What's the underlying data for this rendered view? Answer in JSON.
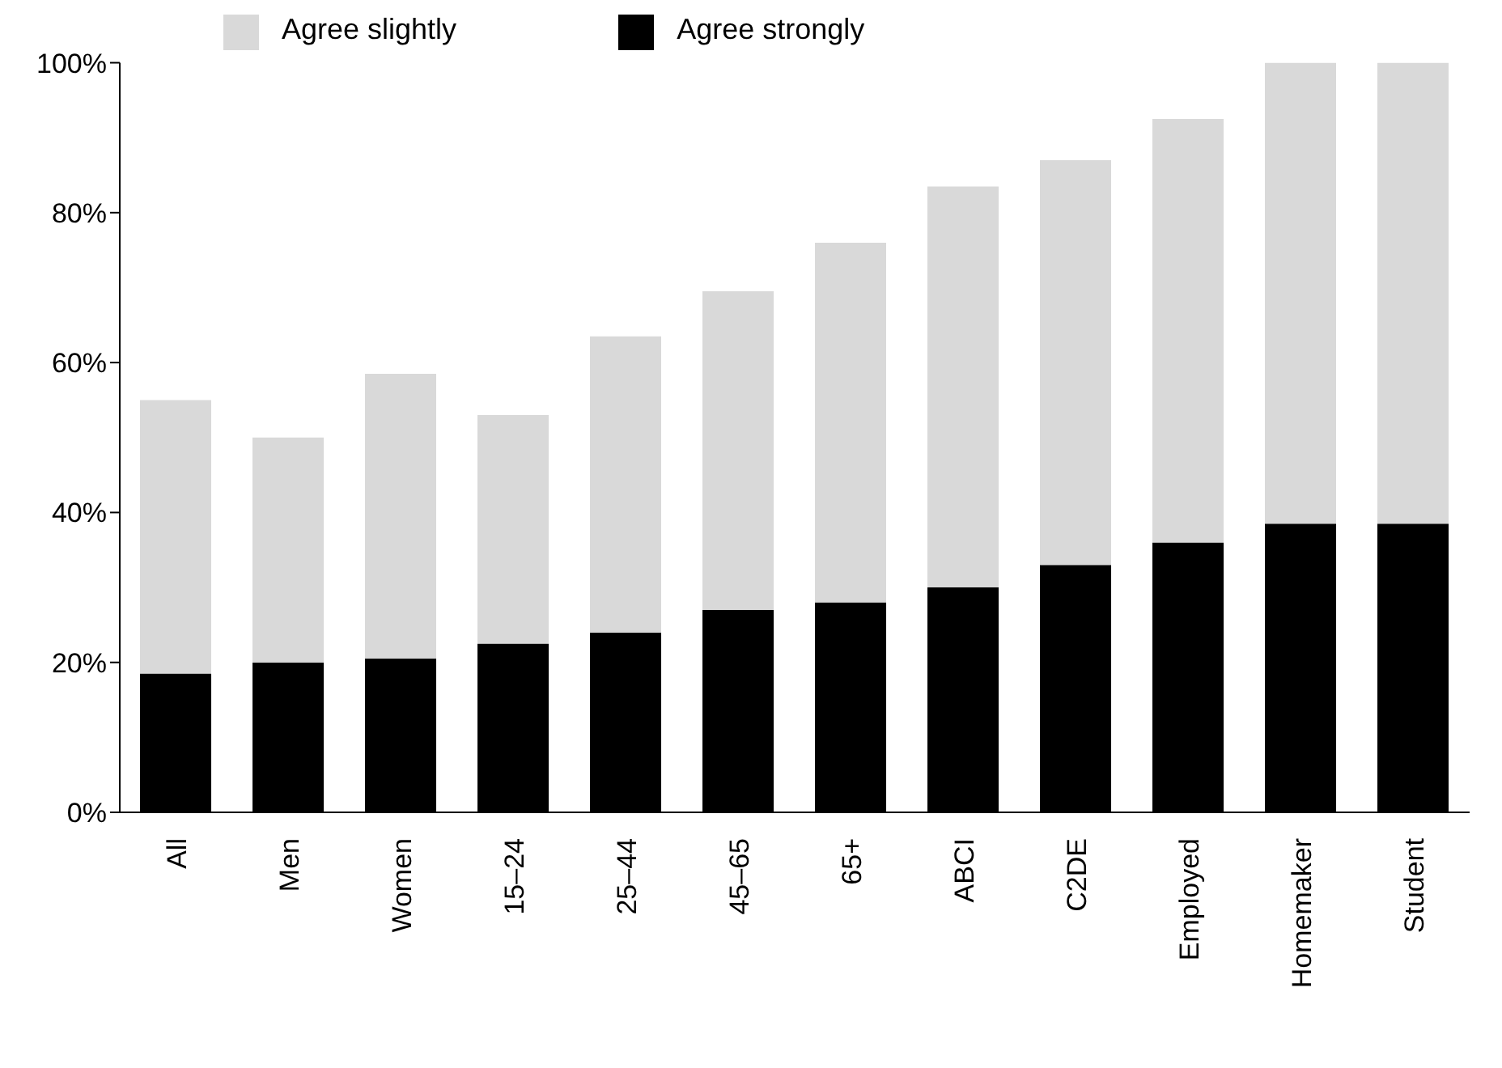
{
  "chart_data": {
    "type": "bar",
    "stacked": true,
    "categories": [
      "All",
      "Men",
      "Women",
      "15–24",
      "25–44",
      "45–65",
      "65+",
      "ABCI",
      "C2DE",
      "Employed",
      "Homemaker",
      "Student"
    ],
    "series": [
      {
        "name": "Agree strongly",
        "color": "#000000",
        "values": [
          18.5,
          20,
          20.5,
          22.5,
          24,
          27,
          28,
          30,
          33,
          36,
          38.5,
          38.5
        ]
      },
      {
        "name": "Agree slightly",
        "color": "#d9d9d9",
        "values": [
          36.5,
          30,
          38,
          30.5,
          39.5,
          42.5,
          48,
          53.5,
          54,
          56.5,
          61.5,
          61.5
        ]
      }
    ],
    "ylim": [
      0,
      100
    ],
    "yticks": [
      {
        "value": 0,
        "label": "0%"
      },
      {
        "value": 20,
        "label": "20%"
      },
      {
        "value": 40,
        "label": "40%"
      },
      {
        "value": 60,
        "label": "60%"
      },
      {
        "value": 80,
        "label": "80%"
      },
      {
        "value": 100,
        "label": "100%"
      }
    ],
    "grid": false,
    "legend": "top"
  }
}
